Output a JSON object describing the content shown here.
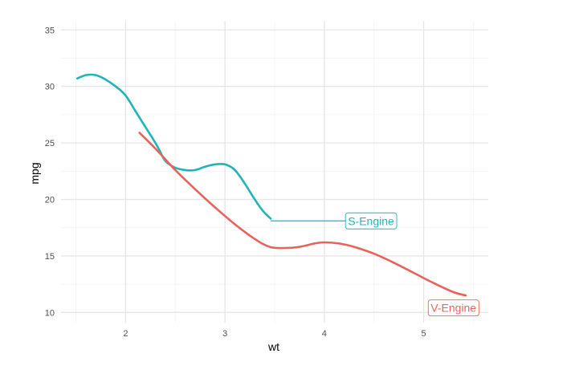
{
  "chart_data": {
    "type": "line",
    "title": "",
    "xlabel": "wt",
    "ylabel": "mpg",
    "xlim": [
      1.35,
      5.65
    ],
    "ylim": [
      9.1,
      35.8
    ],
    "x_ticks": [
      2,
      3,
      4,
      5
    ],
    "y_ticks": [
      10,
      15,
      20,
      25,
      30,
      35
    ],
    "grid": true,
    "legend": "none",
    "series": [
      {
        "name": "S-Engine",
        "color": "#1fb5b8",
        "x": [
          1.513,
          1.6,
          1.7,
          1.8,
          1.9,
          2.0,
          2.1,
          2.2,
          2.3,
          2.35,
          2.4,
          2.5,
          2.6,
          2.7,
          2.8,
          2.9,
          3.0,
          3.1,
          3.2,
          3.3,
          3.38,
          3.46
        ],
        "y": [
          30.7,
          31.0,
          31.0,
          30.6,
          30.0,
          29.2,
          27.8,
          26.4,
          25.0,
          24.2,
          23.4,
          22.8,
          22.6,
          22.6,
          22.9,
          23.1,
          23.1,
          22.6,
          21.4,
          20.0,
          19.0,
          18.3
        ]
      },
      {
        "name": "V-Engine",
        "color": "#e8625a",
        "x": [
          2.14,
          2.3,
          2.5,
          2.7,
          2.9,
          3.1,
          3.3,
          3.45,
          3.6,
          3.75,
          3.9,
          4.0,
          4.15,
          4.3,
          4.5,
          4.7,
          4.9,
          5.1,
          5.3,
          5.424
        ],
        "y": [
          25.9,
          24.5,
          22.6,
          20.9,
          19.3,
          17.8,
          16.5,
          15.8,
          15.7,
          15.8,
          16.1,
          16.2,
          16.1,
          15.8,
          15.2,
          14.4,
          13.5,
          12.6,
          11.8,
          11.5
        ]
      }
    ],
    "annotations": [
      {
        "text": "S-Engine",
        "series": 0,
        "x": 4.47,
        "y": 18.1,
        "line_from_x": 3.46
      },
      {
        "text": "V-Engine",
        "series": 1,
        "x": 5.3,
        "y": 10.4,
        "line_from_x": null
      }
    ]
  }
}
